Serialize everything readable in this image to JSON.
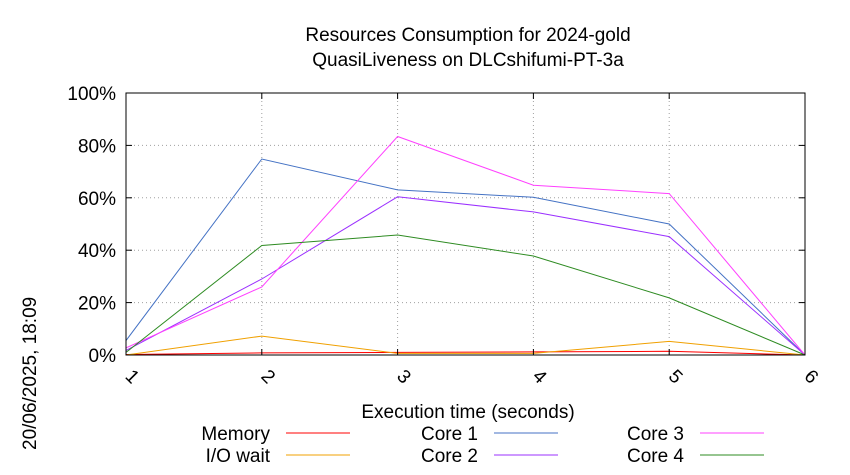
{
  "stamp": "20/06/2025, 18:09",
  "chart_data": {
    "type": "line",
    "title_line1": "Resources Consumption for 2024-gold",
    "title_line2": "QuasiLiveness on DLCshifumi-PT-3a",
    "xlabel": "Execution time (seconds)",
    "ylabel": "",
    "x": [
      1,
      2,
      3,
      4,
      5,
      6
    ],
    "xlim": [
      1,
      6
    ],
    "ylim": [
      0,
      100
    ],
    "x_ticks": [
      "1",
      "2",
      "3",
      "4",
      "5",
      "6"
    ],
    "y_ticks": [
      "0%",
      "20%",
      "40%",
      "60%",
      "80%",
      "100%"
    ],
    "y_tick_values": [
      0,
      20,
      40,
      60,
      80,
      100
    ],
    "grid": true,
    "legend_position": "bottom",
    "series": [
      {
        "name": "Memory",
        "color": "#ff0000",
        "values": [
          0.2,
          0.8,
          1.0,
          1.2,
          1.4,
          0
        ]
      },
      {
        "name": "I/O wait",
        "color": "#f0a000",
        "values": [
          0,
          7.2,
          0.6,
          0.6,
          5.2,
          0
        ]
      },
      {
        "name": "Core 1",
        "color": "#4472c4",
        "values": [
          5.5,
          74.8,
          63,
          60.2,
          50,
          0
        ]
      },
      {
        "name": "Core 2",
        "color": "#9b30ff",
        "values": [
          1.7,
          29,
          60.4,
          54.6,
          45.2,
          0
        ]
      },
      {
        "name": "Core 3",
        "color": "#ff40ff",
        "values": [
          2.7,
          26,
          83.4,
          64.8,
          61.6,
          0
        ]
      },
      {
        "name": "Core 4",
        "color": "#2e8b22",
        "values": [
          1.0,
          41.8,
          45.8,
          37.8,
          21.8,
          0
        ]
      }
    ]
  }
}
